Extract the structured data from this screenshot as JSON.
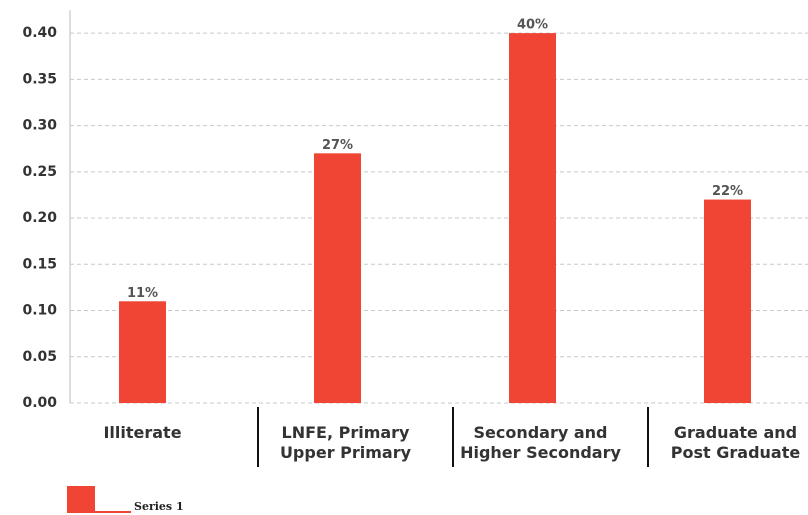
{
  "chart_data": {
    "type": "bar",
    "categories": [
      "Illiterate",
      "LNFE, Primary\nUpper Primary",
      "Secondary and\nHigher Secondary",
      "Graduate and\nPost Graduate"
    ],
    "series": [
      {
        "name": "Series 1",
        "color": "#f04434",
        "values": [
          0.11,
          0.27,
          0.4,
          0.22
        ],
        "value_labels": [
          "11%",
          "27%",
          "40%",
          "22%"
        ]
      }
    ],
    "ylim": [
      0,
      0.425
    ],
    "yticks": [
      {
        "value": 0,
        "label": "0.00"
      },
      {
        "value": 0.05,
        "label": "0.05"
      },
      {
        "value": 0.1,
        "label": "0.10"
      },
      {
        "value": 0.15,
        "label": "0.15"
      },
      {
        "value": 0.2,
        "label": "0.20"
      },
      {
        "value": 0.25,
        "label": "0.25"
      },
      {
        "value": 0.3,
        "label": "0.30"
      },
      {
        "value": 0.35,
        "label": "0.35"
      },
      {
        "value": 0.4,
        "label": "0.40"
      }
    ],
    "grid": true,
    "legend": "bottom-left"
  }
}
